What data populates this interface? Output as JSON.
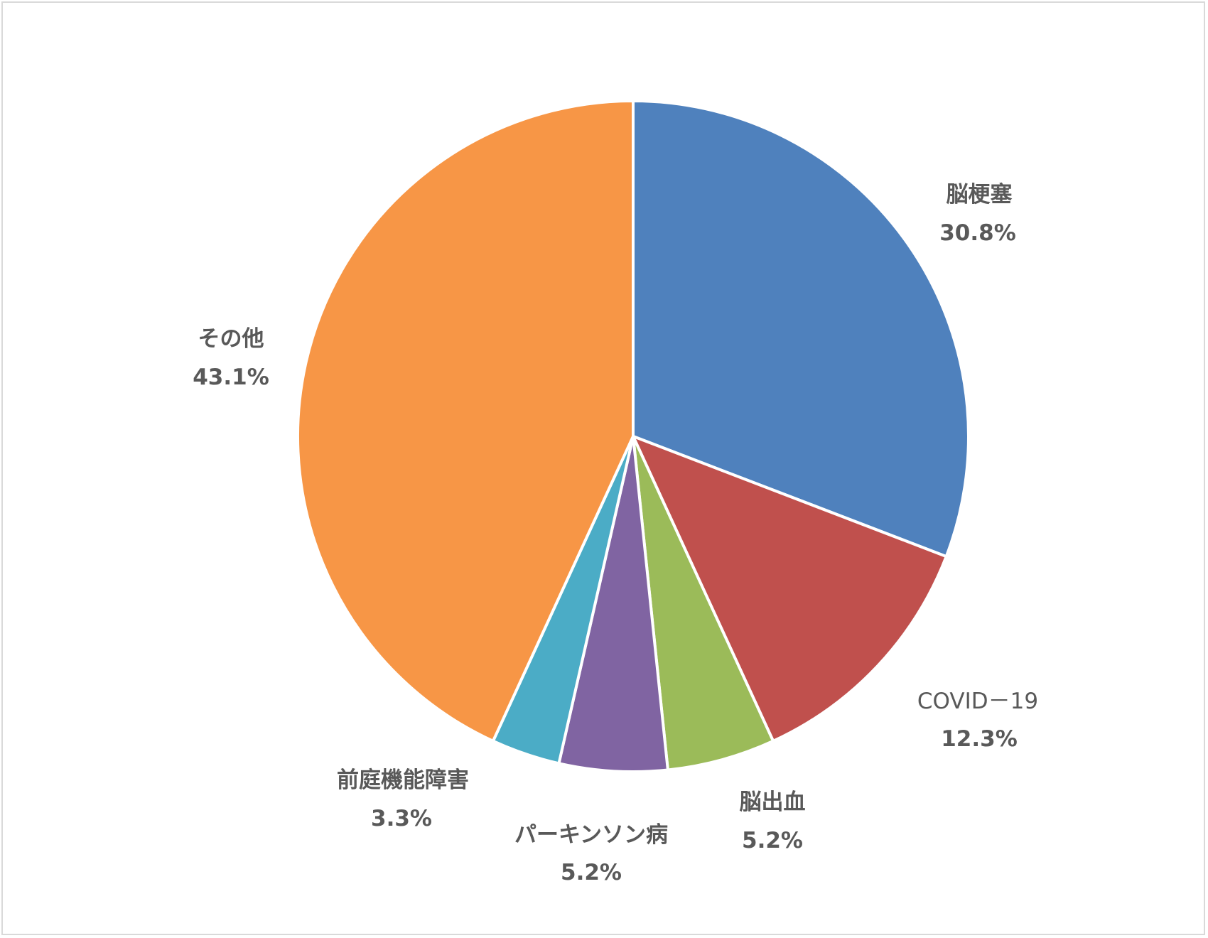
{
  "chart_data": {
    "type": "pie",
    "title": "",
    "start_angle_deg": 0,
    "direction": "clockwise",
    "data_labels": "category and percent",
    "slices": [
      {
        "label": "脳梗塞",
        "value": 30.8,
        "value_label": "30.8%",
        "color": "#4f81bd"
      },
      {
        "label": "COVID－19",
        "value": 12.3,
        "value_label": "12.3%",
        "color": "#c0504d"
      },
      {
        "label": "脳出血",
        "value": 5.2,
        "value_label": "5.2%",
        "color": "#9bbb59"
      },
      {
        "label": "パーキンソン病",
        "value": 5.2,
        "value_label": "5.2%",
        "color": "#8064a2"
      },
      {
        "label": "前庭機能障害",
        "value": 3.3,
        "value_label": "3.3%",
        "color": "#4bacc6"
      },
      {
        "label": "その他",
        "value": 43.1,
        "value_label": "43.1%",
        "color": "#f79646"
      }
    ]
  }
}
